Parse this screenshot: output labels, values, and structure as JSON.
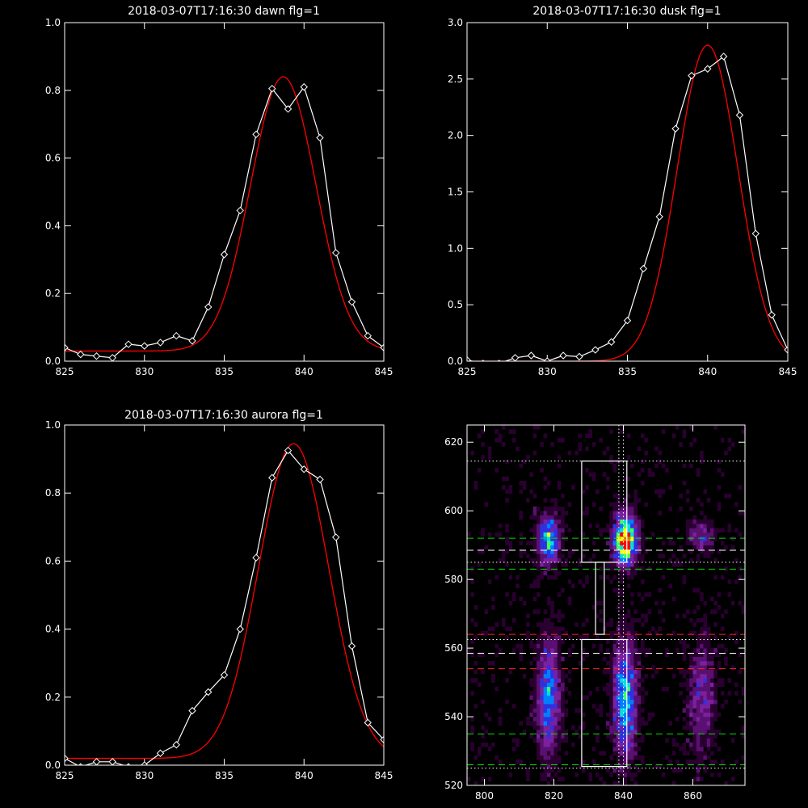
{
  "colors": {
    "background": "#000000",
    "axes": "#ffffff",
    "data_line": "#ffffff",
    "fit_line": "#ff0000",
    "marker_stroke": "#ffffff",
    "guide_green": "#00dd00",
    "guide_red": "#ff2222",
    "guide_white": "#ffffff"
  },
  "chart_data": [
    {
      "type": "line",
      "title": "2018-03-07T17:16:30 dawn flg=1",
      "xlim": [
        825,
        845
      ],
      "ylim": [
        0,
        1.0
      ],
      "xticks": [
        825,
        830,
        835,
        840,
        845
      ],
      "xtick_labels": [
        "825",
        "830",
        "835",
        "840",
        "845"
      ],
      "yticks": [
        0,
        0.2,
        0.4,
        0.6,
        0.8,
        1.0
      ],
      "ytick_labels": [
        "0.0",
        "0.2",
        "0.4",
        "0.6",
        "0.8",
        "1.0"
      ],
      "series": [
        {
          "style": "line+diamond",
          "x": [
            825,
            826,
            827,
            828,
            829,
            830,
            831,
            832,
            833,
            834,
            835,
            836,
            837,
            838,
            839,
            840,
            841,
            842,
            843,
            844,
            845
          ],
          "y": [
            0.04,
            0.02,
            0.015,
            0.01,
            0.05,
            0.045,
            0.055,
            0.075,
            0.06,
            0.16,
            0.315,
            0.445,
            0.67,
            0.805,
            0.745,
            0.81,
            0.66,
            0.32,
            0.175,
            0.075,
            0.04
          ]
        },
        {
          "style": "fit",
          "gauss": {
            "amp": 0.81,
            "center": 838.7,
            "sigma": 2.05,
            "offset": 0.03
          }
        }
      ]
    },
    {
      "type": "line",
      "title": "2018-03-07T17:16:30 dusk flg=1",
      "xlim": [
        825,
        845
      ],
      "ylim": [
        0,
        3.0
      ],
      "xticks": [
        825,
        830,
        835,
        840,
        845
      ],
      "xtick_labels": [
        "825",
        "830",
        "835",
        "840",
        "845"
      ],
      "yticks": [
        0,
        0.5,
        1.0,
        1.5,
        2.0,
        2.5,
        3.0
      ],
      "ytick_labels": [
        "0.0",
        "0.5",
        "1.0",
        "1.5",
        "2.0",
        "2.5",
        "3.0"
      ],
      "series": [
        {
          "style": "line+diamond",
          "x": [
            825,
            826,
            827,
            828,
            829,
            830,
            831,
            832,
            833,
            834,
            835,
            836,
            837,
            838,
            839,
            840,
            841,
            842,
            843,
            844,
            845
          ],
          "y": [
            0.01,
            -0.02,
            -0.02,
            0.03,
            0.05,
            0.0,
            0.05,
            0.04,
            0.1,
            0.17,
            0.36,
            0.82,
            1.28,
            2.06,
            2.53,
            2.59,
            2.7,
            2.18,
            1.13,
            0.41,
            0.1
          ]
        },
        {
          "style": "fit",
          "gauss": {
            "amp": 2.8,
            "center": 840.0,
            "sigma": 1.9,
            "offset": 0.0
          }
        }
      ]
    },
    {
      "type": "line",
      "title": "2018-03-07T17:16:30 aurora flg=1",
      "xlim": [
        825,
        845
      ],
      "ylim": [
        0,
        1.0
      ],
      "xticks": [
        825,
        830,
        835,
        840,
        845
      ],
      "xtick_labels": [
        "825",
        "830",
        "835",
        "840",
        "845"
      ],
      "yticks": [
        0,
        0.2,
        0.4,
        0.6,
        0.8,
        1.0
      ],
      "ytick_labels": [
        "0.0",
        "0.2",
        "0.4",
        "0.6",
        "0.8",
        "1.0"
      ],
      "series": [
        {
          "style": "line+diamond",
          "x": [
            825,
            826,
            827,
            828,
            829,
            830,
            831,
            832,
            833,
            834,
            835,
            836,
            837,
            838,
            839,
            840,
            841,
            842,
            843,
            844,
            845
          ],
          "y": [
            0.02,
            -0.005,
            0.01,
            0.01,
            -0.005,
            0.0,
            0.035,
            0.06,
            0.16,
            0.215,
            0.265,
            0.4,
            0.61,
            0.845,
            0.925,
            0.87,
            0.84,
            0.67,
            0.35,
            0.125,
            0.075
          ]
        },
        {
          "style": "fit",
          "gauss": {
            "amp": 0.925,
            "center": 839.35,
            "sigma": 2.2,
            "offset": 0.02
          }
        }
      ]
    },
    {
      "type": "heatmap",
      "xlim": [
        795,
        875
      ],
      "ylim": [
        520,
        625
      ],
      "xticks": [
        800,
        820,
        840,
        860
      ],
      "xtick_labels": [
        "800",
        "820",
        "840",
        "860"
      ],
      "yticks": [
        520,
        540,
        560,
        580,
        600,
        620
      ],
      "ytick_labels": [
        "520",
        "540",
        "560",
        "580",
        "600",
        "620"
      ],
      "colormap": [
        "#000000",
        "#2a0030",
        "#5a1070",
        "#7a20a0",
        "#3030e0",
        "#0080ff",
        "#00e0e0",
        "#40ff60",
        "#ffff00",
        "#ff8000",
        "#ff0000"
      ],
      "blobs": [
        {
          "x": 818,
          "y": 591,
          "sx": 2.2,
          "sy": 5,
          "amp": 0.62
        },
        {
          "x": 840,
          "y": 591,
          "sx": 2.3,
          "sy": 5,
          "amp": 1.0
        },
        {
          "x": 862,
          "y": 592,
          "sx": 2.5,
          "sy": 3,
          "amp": 0.35
        },
        {
          "x": 818,
          "y": 545,
          "sx": 2.4,
          "sy": 12,
          "amp": 0.5
        },
        {
          "x": 840,
          "y": 545,
          "sx": 2.4,
          "sy": 12,
          "amp": 0.58
        },
        {
          "x": 862,
          "y": 545,
          "sx": 2.6,
          "sy": 11,
          "amp": 0.32
        }
      ],
      "hlines": [
        {
          "y": 614.5,
          "style": "dotted",
          "color": "white"
        },
        {
          "y": 592.0,
          "style": "dashed",
          "color": "green"
        },
        {
          "y": 588.5,
          "style": "dashed",
          "color": "white"
        },
        {
          "y": 585.0,
          "style": "dotted",
          "color": "white"
        },
        {
          "y": 583.0,
          "style": "dashed",
          "color": "green"
        },
        {
          "y": 564.0,
          "style": "dashed",
          "color": "red"
        },
        {
          "y": 562.5,
          "style": "dotted",
          "color": "white"
        },
        {
          "y": 558.5,
          "style": "dashed",
          "color": "white"
        },
        {
          "y": 554.0,
          "style": "dashed",
          "color": "red"
        },
        {
          "y": 535.0,
          "style": "dashed",
          "color": "green"
        },
        {
          "y": 526.0,
          "style": "dashed",
          "color": "green"
        },
        {
          "y": 525.0,
          "style": "dotted",
          "color": "white"
        }
      ],
      "vlines": [
        {
          "x": 838.7,
          "style": "dotted",
          "color": "white"
        },
        {
          "x": 840.0,
          "style": "dotted",
          "color": "white"
        }
      ],
      "boxes": [
        {
          "x0": 828,
          "x1": 841,
          "y0": 585,
          "y1": 614.5
        },
        {
          "x0": 828,
          "x1": 841,
          "y0": 525.5,
          "y1": 562.5
        },
        {
          "x0": 832,
          "x1": 834.5,
          "y0": 564,
          "y1": 585
        }
      ]
    }
  ]
}
